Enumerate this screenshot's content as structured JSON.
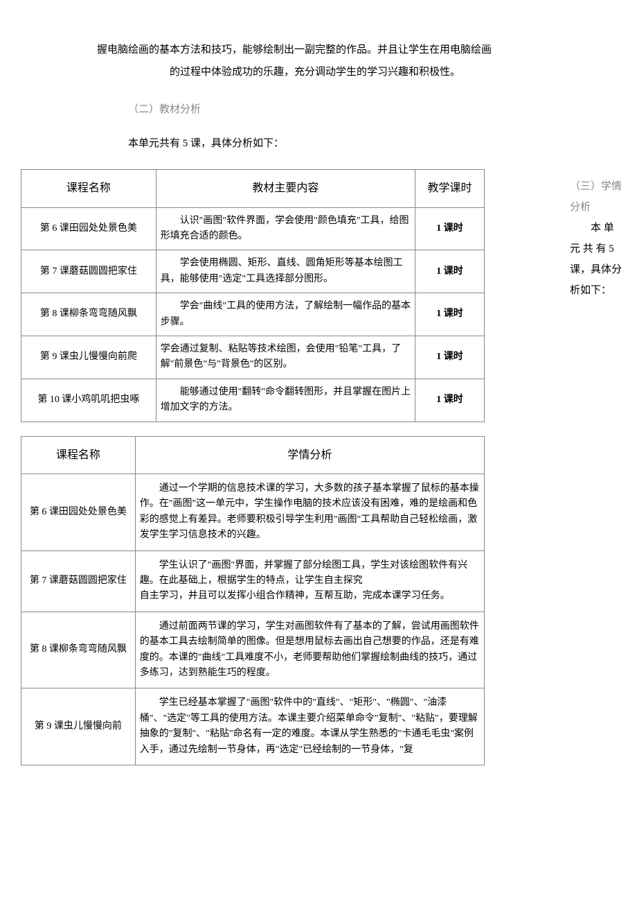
{
  "intro": {
    "line1": "握电脑绘画的基本方法和技巧，能够绘制出一副完整的作品。并且让学生在用电脑绘画",
    "line2": "的过程中体验成功的乐趣，充分调动学生的学习兴趣和积极性。"
  },
  "section2_heading": "（二）教材分析",
  "unit_desc": "本单元共有 5 课，具体分析如下：",
  "side_note": {
    "line1": "（三）学情",
    "line2": "分析",
    "line3": "本 单",
    "line4": "元 共 有 5",
    "line5": "课，具体分",
    "line6": "析如下："
  },
  "table1": {
    "headers": [
      "课程名称",
      "教材主要内容",
      "教学课时"
    ],
    "rows": [
      {
        "course": "第 6 课田园处处景色美",
        "content": "认识\"画图\"软件界面，学会使用\"颜色填充\"工具，给图形填充合适的颜色。",
        "hours": "1 课时"
      },
      {
        "course": "第 7 课蘑菇圆圆把家住",
        "content": "学会使用椭圆、矩形、直线、圆角矩形等基本绘图工具，能够使用\"选定\"工具选择部分图形。",
        "hours": "1 课时"
      },
      {
        "course": "第 8 课柳条弯弯随风飘",
        "content": "学会\"曲线\"工具的使用方法，了解绘制一幅作品的基本步骤。",
        "hours": "1 课时"
      },
      {
        "course": "第 9 课虫儿慢慢向前爬",
        "content": "学会通过复制、粘贴等技术绘图，会使用\"铅笔\"工具，了解\"前景色\"与\"背景色\"的区别。",
        "hours": "1 课时"
      },
      {
        "course": "第 10 课小鸡叽叽把虫啄",
        "content": "能够通过使用\"翻转\"命令翻转图形，并且掌握在图片上增加文字的方法。",
        "hours": "1 课时"
      }
    ]
  },
  "table2": {
    "headers": [
      "课程名称",
      "学情分析"
    ],
    "rows": [
      {
        "course": "第 6 课田园处处景色美",
        "analysis": "通过一个学期的信息技术课的学习，大多数的孩子基本掌握了鼠标的基本操作。在\"画图\"这一单元中，学生操作电脑的技术应该没有困难，难的是绘画和色彩的感觉上有差异。老师要积极引导学生利用\"画图\"工具帮助自己轻松绘画，激发学生学习信息技术的兴趣。"
      },
      {
        "course": "第 7 课蘑菇圆圆把家住",
        "analysis": "学生认识了\"画图\"界面，并掌握了部分绘图工具，学生对该绘图软件有兴趣。在此基础上，根据学生的特点，让学生自主探究\n自主学习，并且可以发挥小组合作精神，互帮互助，完成本课学习任务。"
      },
      {
        "course": "第 8 课柳条弯弯随风飘",
        "analysis": "通过前面两节课的学习，学生对画图软件有了基本的了解，尝试用画图软件的基本工具去绘制简单的图像。但是想用鼠标去画出自己想要的作品，还是有难度的。本课的\"曲线\"工具难度不小，老师要帮助他们掌握绘制曲线的技巧，通过多练习，达到熟能生巧的程度。"
      },
      {
        "course": "第 9 课虫儿慢慢向前",
        "analysis": "学生已经基本掌握了\"画图\"软件中的\"直线\"、\"矩形\"、\"椭圆\"、\"油漆桶\"、\"选定\"等工具的使用方法。本课主要介绍菜单命令\"复制\"、\"粘贴\"，要理解抽象的\"复制\"、\"粘贴\"命名有一定的难度。本课从学生熟悉的\"卡通毛毛虫\"案例入手，通过先绘制一节身体，再\"选定\"已经绘制的一节身体，\"复"
      }
    ]
  }
}
